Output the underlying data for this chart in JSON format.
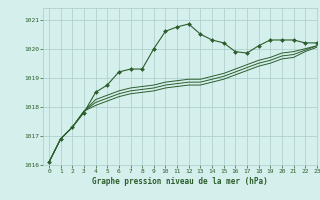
{
  "title": "Graphe pression niveau de la mer (hPa)",
  "bg_color": "#d4efec",
  "grid_color": "#a8ccc9",
  "line_color": "#2d5e2d",
  "xlim": [
    -0.5,
    23
  ],
  "ylim": [
    1016,
    1021.4
  ],
  "yticks": [
    1016,
    1017,
    1018,
    1019,
    1020,
    1021
  ],
  "xticks": [
    0,
    1,
    2,
    3,
    4,
    5,
    6,
    7,
    8,
    9,
    10,
    11,
    12,
    13,
    14,
    15,
    16,
    17,
    18,
    19,
    20,
    21,
    22,
    23
  ],
  "series": [
    {
      "x": [
        0,
        1,
        2,
        3,
        4,
        5,
        6,
        7,
        8,
        9,
        10,
        11,
        12,
        13,
        14,
        15,
        16,
        17,
        18,
        19,
        20,
        21,
        22,
        23
      ],
      "y": [
        1016.1,
        1016.9,
        1017.3,
        1017.8,
        1018.5,
        1018.75,
        1019.2,
        1019.3,
        1019.3,
        1020.0,
        1020.6,
        1020.75,
        1020.85,
        1020.5,
        1020.3,
        1020.2,
        1019.9,
        1019.85,
        1020.1,
        1020.3,
        1020.3,
        1020.3,
        1020.2,
        1020.2
      ],
      "marker": true
    },
    {
      "x": [
        0,
        1,
        2,
        3,
        4,
        5,
        6,
        7,
        8,
        9,
        10,
        11,
        12,
        13,
        14,
        15,
        16,
        17,
        18,
        19,
        20,
        21,
        22,
        23
      ],
      "y": [
        1016.1,
        1016.9,
        1017.3,
        1017.85,
        1018.25,
        1018.4,
        1018.55,
        1018.65,
        1018.7,
        1018.75,
        1018.85,
        1018.9,
        1018.95,
        1018.95,
        1019.05,
        1019.15,
        1019.3,
        1019.45,
        1019.6,
        1019.7,
        1019.85,
        1019.9,
        1020.0,
        1020.1
      ],
      "marker": false
    },
    {
      "x": [
        0,
        1,
        2,
        3,
        4,
        5,
        6,
        7,
        8,
        9,
        10,
        11,
        12,
        13,
        14,
        15,
        16,
        17,
        18,
        19,
        20,
        21,
        22,
        23
      ],
      "y": [
        1016.1,
        1016.9,
        1017.3,
        1017.85,
        1018.15,
        1018.3,
        1018.45,
        1018.55,
        1018.6,
        1018.65,
        1018.75,
        1018.8,
        1018.85,
        1018.85,
        1018.95,
        1019.05,
        1019.2,
        1019.35,
        1019.5,
        1019.6,
        1019.75,
        1019.8,
        1019.95,
        1020.1
      ],
      "marker": false
    },
    {
      "x": [
        0,
        1,
        2,
        3,
        4,
        5,
        6,
        7,
        8,
        9,
        10,
        11,
        12,
        13,
        14,
        15,
        16,
        17,
        18,
        19,
        20,
        21,
        22,
        23
      ],
      "y": [
        1016.1,
        1016.9,
        1017.3,
        1017.85,
        1018.05,
        1018.2,
        1018.35,
        1018.45,
        1018.5,
        1018.55,
        1018.65,
        1018.7,
        1018.75,
        1018.75,
        1018.85,
        1018.95,
        1019.1,
        1019.25,
        1019.4,
        1019.5,
        1019.65,
        1019.7,
        1019.9,
        1020.05
      ],
      "marker": false
    }
  ]
}
